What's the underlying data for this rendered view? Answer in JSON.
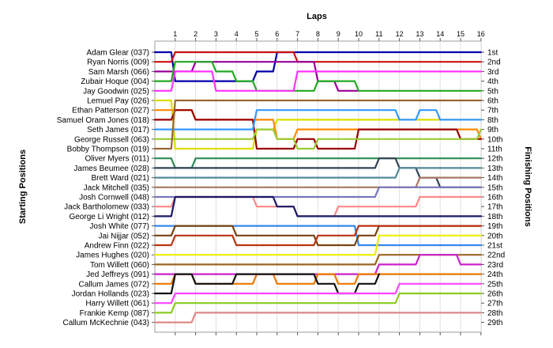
{
  "chart_data": {
    "type": "line",
    "x_axis_title": "Laps",
    "y_left_title": "Starting Positions",
    "y_right_title": "Finishing Positions",
    "laps": [
      1,
      2,
      3,
      4,
      5,
      6,
      7,
      8,
      9,
      10,
      11,
      12,
      13,
      14,
      15,
      16
    ],
    "drivers": [
      "Adam Glear (037)",
      "Ryan Norris (009)",
      "Sam Marsh (066)",
      "Zubair Hoque (004)",
      "Jay Goodwin (025)",
      "Lemuel Pay (026)",
      "Ethan Patterson (027)",
      "Samuel Oram Jones (018)",
      "Seth James (017)",
      "George Russell (063)",
      "Bobby Thompson (019)",
      "Oliver Myers (011)",
      "James Beumee (028)",
      "Brett Ward (021)",
      "Jack Mitchell (035)",
      "Josh Cornwell (048)",
      "Jack Bartholomew (033)",
      "George Li Wright (012)",
      "Josh White (077)",
      "Jai Nijjar (052)",
      "Andrew Finn (022)",
      "James Hughes (020)",
      "Tom Willett (060)",
      "Jed Jeffreys (091)",
      "Callum James (072)",
      "Jordan Hollands (023)",
      "Harry Willett (061)",
      "Frankie Kemp (087)",
      "Callum McKechnie (043)"
    ],
    "finishing_labels": [
      "1st",
      "2nd",
      "3rd",
      "4th",
      "5th",
      "6th",
      "7th",
      "8th",
      "9th",
      "10th",
      "11th",
      "12th",
      "13th",
      "14th",
      "15th",
      "16th",
      "17th",
      "18th",
      "19th",
      "20th",
      "21st",
      "22nd",
      "23rd",
      "24th",
      "25th",
      "26th",
      "27th",
      "28th",
      "29th"
    ],
    "series": [
      {
        "color": "#0000aa",
        "positions": [
          1,
          4,
          4,
          4,
          4,
          3,
          1,
          1,
          1,
          1,
          1,
          1,
          1,
          1,
          1,
          1,
          1
        ]
      },
      {
        "color": "#cc1111",
        "positions": [
          2,
          1,
          1,
          1,
          1,
          1,
          1,
          2,
          2,
          2,
          2,
          2,
          2,
          2,
          2,
          2,
          2
        ]
      },
      {
        "color": "#990099",
        "positions": [
          3,
          3,
          2,
          2,
          2,
          2,
          2,
          2,
          4,
          5,
          5
        ]
      },
      {
        "color": "#22aa22",
        "positions": [
          4,
          2,
          2,
          3,
          4,
          5,
          5,
          5,
          4,
          4,
          5,
          5,
          5,
          5,
          5,
          5,
          5
        ]
      },
      {
        "color": "#ff33ff",
        "positions": [
          5,
          3,
          3,
          5,
          5,
          5,
          5,
          3,
          3,
          3,
          3,
          3,
          3,
          3,
          3,
          3,
          3
        ]
      },
      {
        "color": "#dddd00",
        "positions": [
          6,
          11,
          11,
          11,
          11,
          9,
          8,
          8,
          8,
          8,
          8,
          8,
          8,
          8,
          8,
          8,
          8
        ]
      },
      {
        "color": "#ff8800",
        "positions": [
          7,
          7,
          8,
          8,
          8,
          8,
          10,
          9,
          9,
          9,
          9,
          9,
          9,
          9,
          9,
          9,
          10
        ]
      },
      {
        "color": "#990000",
        "positions": [
          8,
          7,
          8,
          8,
          8,
          11,
          11,
          10,
          11,
          11,
          9,
          9,
          9,
          9,
          9,
          10,
          10
        ]
      },
      {
        "color": "#3399ff",
        "positions": [
          9,
          9,
          9,
          9,
          9,
          7,
          7,
          7,
          7,
          7,
          7,
          7,
          8,
          7,
          8,
          8,
          8
        ]
      },
      {
        "color": "#99cc33",
        "positions": [
          10,
          10,
          10,
          10,
          10,
          9,
          10,
          11,
          10,
          10,
          10,
          10,
          10,
          10,
          10,
          10,
          9
        ]
      },
      {
        "color": "#996633",
        "positions": [
          11,
          6,
          6,
          6,
          6,
          6,
          6,
          6,
          6,
          6,
          6,
          6,
          6,
          6,
          6,
          6,
          6
        ]
      },
      {
        "color": "#2e8b57",
        "positions": [
          12,
          13,
          12,
          12,
          12,
          12,
          12,
          12,
          12,
          12,
          12,
          12,
          12,
          12,
          12,
          12,
          12
        ]
      },
      {
        "color": "#334455",
        "positions": [
          13,
          13,
          13,
          13,
          13,
          13,
          13,
          13,
          13,
          13,
          13,
          12,
          13,
          14,
          15,
          15,
          15
        ]
      },
      {
        "color": "#558899",
        "positions": [
          14,
          14,
          14,
          14,
          14,
          14,
          14,
          14,
          14,
          14,
          14,
          14,
          13,
          13,
          13,
          13,
          13
        ]
      },
      {
        "color": "#aa7766",
        "positions": [
          15,
          15,
          15,
          15,
          15,
          15,
          15,
          15,
          15,
          15,
          15,
          15,
          15,
          14,
          14,
          14,
          14
        ]
      },
      {
        "color": "#7777bb",
        "positions": [
          16,
          16,
          16,
          16,
          16,
          16,
          16,
          16,
          16,
          16,
          16,
          15,
          15,
          15,
          15,
          15,
          15
        ]
      },
      {
        "color": "#ff8888",
        "positions": [
          17,
          16,
          16,
          16,
          16,
          17,
          17,
          18,
          18,
          17,
          17,
          17,
          17,
          16,
          16,
          16,
          16
        ]
      },
      {
        "color": "#1a1a66",
        "positions": [
          18,
          16,
          16,
          16,
          16,
          16,
          17,
          18,
          18,
          18,
          18,
          18,
          18,
          18,
          18,
          18,
          18
        ]
      },
      {
        "color": "#3388ee",
        "positions": [
          19,
          19,
          19,
          19,
          19,
          19,
          19,
          19,
          19,
          19,
          21,
          21,
          21,
          21,
          21,
          21,
          21
        ]
      },
      {
        "color": "#774411",
        "positions": [
          20,
          19,
          19,
          19,
          20,
          20,
          20,
          20,
          21,
          21,
          20,
          19,
          19,
          19,
          19,
          19,
          19
        ]
      },
      {
        "color": "#bb3311",
        "positions": [
          21,
          20,
          20,
          20,
          21,
          21,
          21,
          21,
          20,
          20,
          19,
          19,
          19,
          19,
          19,
          19,
          19
        ]
      },
      {
        "color": "#eeee00",
        "positions": [
          22,
          22,
          22,
          22,
          22,
          22,
          22,
          22,
          22,
          22,
          22,
          20,
          20,
          20,
          20,
          20,
          20
        ]
      },
      {
        "color": "#996622",
        "positions": [
          23,
          23,
          23,
          23,
          23,
          23,
          23,
          23,
          23,
          23,
          23,
          22,
          22,
          22,
          22,
          22,
          22
        ]
      },
      {
        "color": "#cc22cc",
        "positions": [
          24,
          24,
          24,
          24,
          24,
          24,
          24,
          24,
          24,
          24,
          24,
          23,
          23,
          22,
          22,
          23,
          23
        ]
      },
      {
        "color": "#ee7700",
        "positions": [
          25,
          24,
          25,
          25,
          25,
          24,
          25,
          25,
          24,
          25,
          24,
          24,
          24,
          24,
          24,
          24,
          24
        ]
      },
      {
        "color": "#111111",
        "positions": [
          26,
          24,
          25,
          25,
          24,
          24,
          24,
          24,
          25,
          26,
          25,
          24
        ]
      },
      {
        "color": "#ff44ff",
        "positions": [
          27,
          26,
          26,
          26,
          26,
          26,
          26,
          26,
          26,
          26,
          26,
          26,
          25,
          25,
          25,
          25,
          25
        ]
      },
      {
        "color": "#88cc22",
        "positions": [
          28,
          27,
          27,
          27,
          27,
          27,
          27,
          27,
          27,
          27,
          27,
          27,
          26,
          26,
          26,
          26,
          26
        ]
      },
      {
        "color": "#dd8888",
        "positions": [
          29,
          29,
          28,
          28,
          28,
          28,
          28,
          28,
          28,
          28,
          28,
          28,
          28,
          28,
          28,
          28,
          28
        ]
      }
    ]
  }
}
